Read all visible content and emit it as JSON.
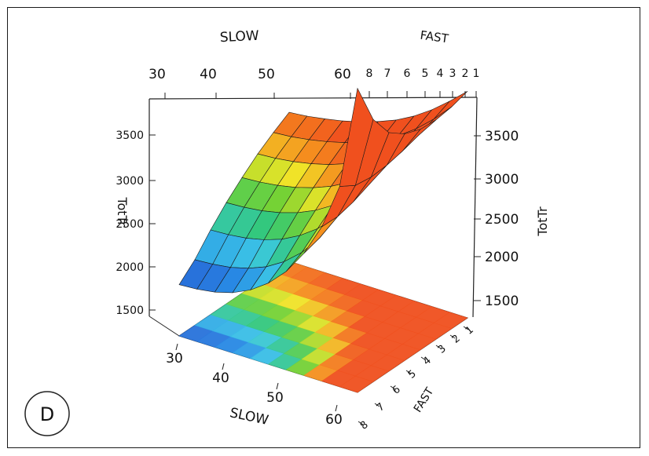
{
  "panel_label": "D",
  "chart_data": {
    "type": "surface",
    "axes": {
      "slow": {
        "label": "SLOW",
        "ticks": [
          "30",
          "40",
          "50",
          "60"
        ],
        "range": [
          30,
          60
        ]
      },
      "fast": {
        "label": "FAST",
        "ticks": [
          "8",
          "7",
          "6",
          "5",
          "4",
          "3",
          "2",
          "1"
        ],
        "range": [
          1,
          8
        ]
      },
      "totTr": {
        "label": "TotTr",
        "ticks": [
          "1500",
          "2000",
          "2500",
          "3000",
          "3500"
        ],
        "range": [
          1250,
          3850
        ]
      }
    },
    "surface": {
      "slow_values": [
        30,
        33,
        36,
        39,
        42,
        45,
        48,
        51,
        54,
        57,
        60
      ],
      "fast_values": [
        1,
        2,
        3,
        4,
        5,
        6,
        7,
        8
      ],
      "tottr_by_fast": [
        [
          2500,
          2515,
          2540,
          2570,
          2610,
          2660,
          2720,
          2800,
          2900,
          3020,
          3150
        ],
        [
          2420,
          2432,
          2455,
          2485,
          2525,
          2575,
          2640,
          2725,
          2830,
          2960,
          3110
        ],
        [
          2330,
          2340,
          2360,
          2390,
          2430,
          2485,
          2555,
          2645,
          2760,
          2910,
          3090
        ],
        [
          2220,
          2230,
          2250,
          2280,
          2325,
          2385,
          2465,
          2565,
          2695,
          2870,
          3100
        ],
        [
          2100,
          2108,
          2126,
          2158,
          2205,
          2272,
          2362,
          2480,
          2630,
          2840,
          3150
        ],
        [
          1960,
          1968,
          1986,
          2020,
          2072,
          2150,
          2255,
          2395,
          2575,
          2830,
          3250
        ],
        [
          1800,
          1810,
          1830,
          1870,
          1930,
          2020,
          2145,
          2315,
          2540,
          2850,
          3450
        ],
        [
          1680,
          1690,
          1712,
          1755,
          1825,
          1930,
          2075,
          2275,
          2545,
          2930,
          3800
        ]
      ]
    }
  }
}
